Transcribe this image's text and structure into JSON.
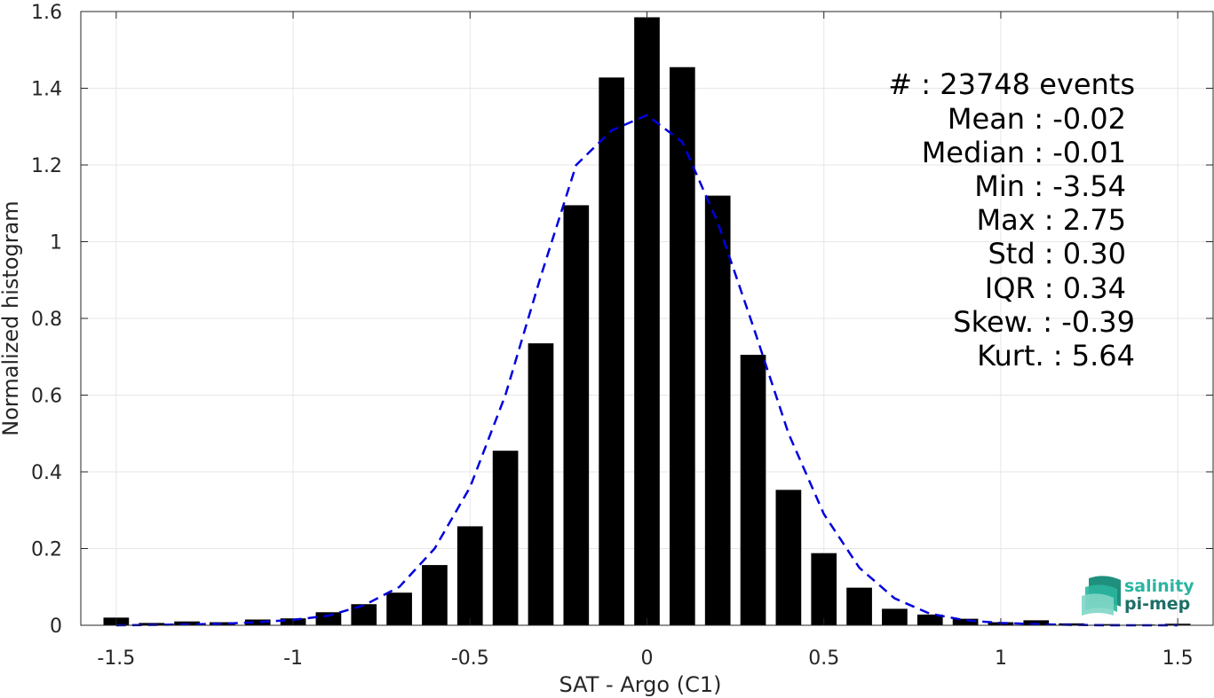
{
  "chart_data": {
    "type": "bar",
    "title": "",
    "xlabel": "SAT - Argo (C1)",
    "ylabel": "Normalized histogram",
    "xlim": [
      -1.6,
      1.6
    ],
    "ylim": [
      0,
      1.6
    ],
    "grid": true,
    "xticks": [
      -1.5,
      -1,
      -0.5,
      0,
      0.5,
      1,
      1.5
    ],
    "xtick_labels": [
      "-1.5",
      "-1",
      "-0.5",
      "0",
      "0.5",
      "1",
      "1.5"
    ],
    "yticks": [
      0,
      0.2,
      0.4,
      0.6,
      0.8,
      1,
      1.2,
      1.4,
      1.6
    ],
    "ytick_labels": [
      "0",
      "0.2",
      "0.4",
      "0.6",
      "0.8",
      "1",
      "1.2",
      "1.4",
      "1.6"
    ],
    "bar_color": "#000000",
    "series": [
      {
        "type": "bar",
        "x": [
          -1.5,
          -1.4,
          -1.3,
          -1.2,
          -1.1,
          -1.0,
          -0.9,
          -0.8,
          -0.7,
          -0.6,
          -0.5,
          -0.4,
          -0.3,
          -0.2,
          -0.1,
          0.0,
          0.1,
          0.2,
          0.3,
          0.4,
          0.5,
          0.6,
          0.7,
          0.8,
          0.9,
          1.0,
          1.1,
          1.2,
          1.3,
          1.4,
          1.5
        ],
        "values": [
          0.02,
          0.006,
          0.01,
          0.008,
          0.015,
          0.018,
          0.034,
          0.055,
          0.085,
          0.157,
          0.258,
          0.455,
          0.735,
          1.095,
          1.428,
          1.585,
          1.455,
          1.12,
          0.705,
          0.353,
          0.188,
          0.098,
          0.043,
          0.028,
          0.017,
          0.008,
          0.013,
          0.005,
          0.003,
          0.002,
          0.004
        ]
      },
      {
        "type": "line",
        "style": "dashed",
        "color": "#0000dd",
        "x": [
          -1.5,
          -1.4,
          -1.3,
          -1.2,
          -1.1,
          -1.0,
          -0.9,
          -0.8,
          -0.7,
          -0.6,
          -0.5,
          -0.4,
          -0.3,
          -0.2,
          -0.1,
          0.0,
          0.1,
          0.2,
          0.3,
          0.4,
          0.5,
          0.6,
          0.7,
          0.8,
          0.9,
          1.0,
          1.1,
          1.2,
          1.3,
          1.4,
          1.5
        ],
        "values": [
          0.0,
          0.001,
          0.002,
          0.004,
          0.008,
          0.014,
          0.025,
          0.052,
          0.1,
          0.2,
          0.36,
          0.6,
          0.91,
          1.2,
          1.29,
          1.33,
          1.26,
          1.05,
          0.78,
          0.5,
          0.29,
          0.15,
          0.07,
          0.03,
          0.013,
          0.006,
          0.003,
          0.001,
          0.0,
          0.0,
          0.0
        ]
      }
    ],
    "annotations": [
      "#  : 23748 events",
      "Mean : -0.02",
      "Median : -0.01",
      "Min : -3.54",
      "Max : 2.75",
      "Std : 0.30",
      "IQR : 0.34",
      "Skew. : -0.39",
      "Kurt. : 5.64"
    ]
  },
  "logo": {
    "line1": "salinity",
    "line2": "pi-mep",
    "color_primary": "#2bb5a0",
    "color_dark": "#1c6f66"
  }
}
